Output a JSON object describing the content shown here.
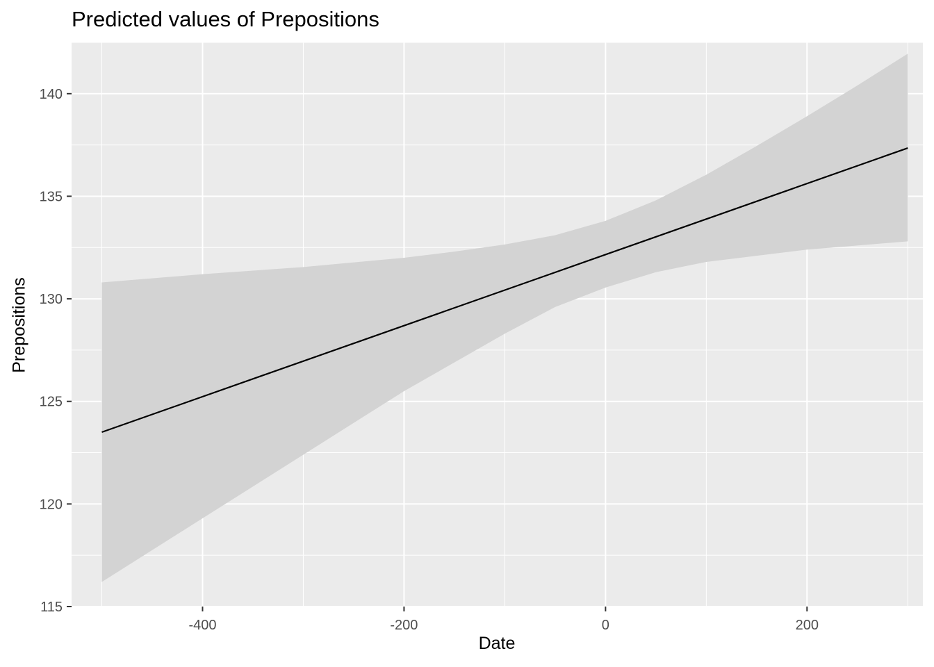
{
  "chart_data": {
    "type": "line",
    "title": "Predicted values of Prepositions",
    "xlabel": "Date",
    "ylabel": "Prepositions",
    "xlim": [
      -530,
      315
    ],
    "ylim": [
      115,
      142.5
    ],
    "x_ticks": [
      -400,
      -200,
      0,
      200
    ],
    "y_ticks": [
      115,
      120,
      125,
      130,
      135,
      140
    ],
    "grid": true,
    "colors": {
      "panel": "#EBEBEB",
      "grid": "#FFFFFF",
      "ribbon": "#D3D3D3",
      "line": "#000000",
      "tick_text": "#4D4D4D",
      "tick_mark": "#333333"
    },
    "series": [
      {
        "type": "line",
        "x": [
          -500,
          300
        ],
        "y": [
          123.5,
          137.35
        ]
      },
      {
        "type": "ribbon",
        "x": [
          -500,
          -400,
          -300,
          -200,
          -150,
          -100,
          -50,
          0,
          50,
          100,
          150,
          200,
          250,
          300
        ],
        "lower": [
          116.2,
          119.3,
          122.4,
          125.5,
          126.9,
          128.3,
          129.6,
          130.55,
          131.3,
          131.8,
          132.1,
          132.4,
          132.6,
          132.8
        ],
        "upper": [
          130.8,
          131.2,
          131.55,
          132.0,
          132.3,
          132.65,
          133.1,
          133.8,
          134.8,
          136.05,
          137.45,
          138.9,
          140.4,
          141.95
        ]
      }
    ]
  }
}
